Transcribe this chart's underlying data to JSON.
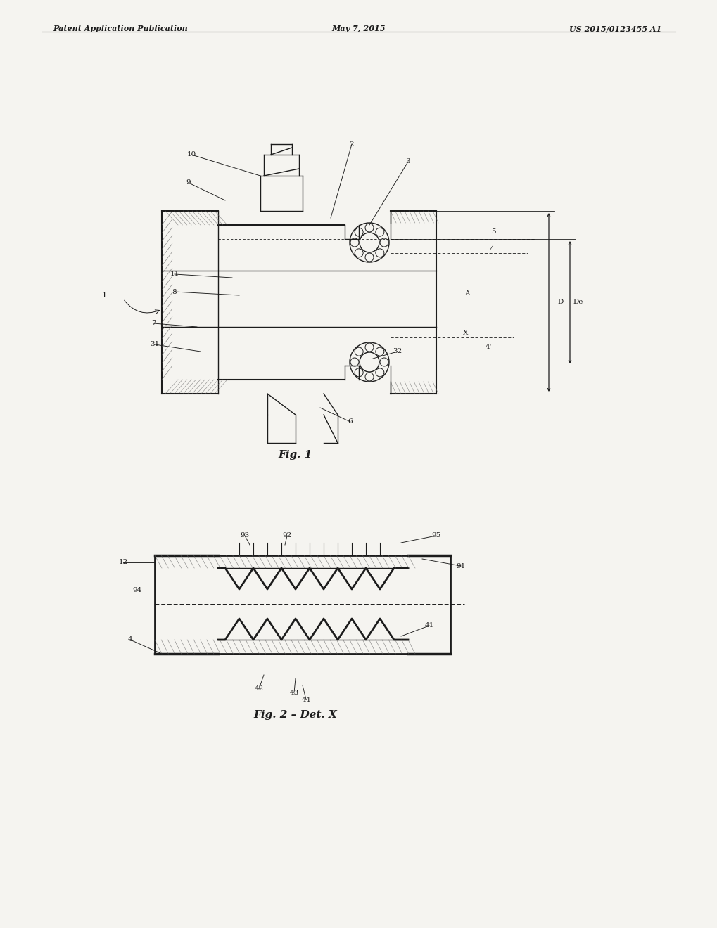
{
  "bg_color": "#f0eeeb",
  "header_left": "Patent Application Publication",
  "header_center": "May 7, 2015",
  "header_right": "US 2015/0123455 A1",
  "fig1_caption": "Fig. 1",
  "fig2_caption": "Fig. 2 – Det. X",
  "page_bg": "#f0eeeb",
  "line_color": "#2a2a2a",
  "hatch_color": "#555555",
  "label_fontsize": 7.5,
  "caption_fontsize": 10.5
}
